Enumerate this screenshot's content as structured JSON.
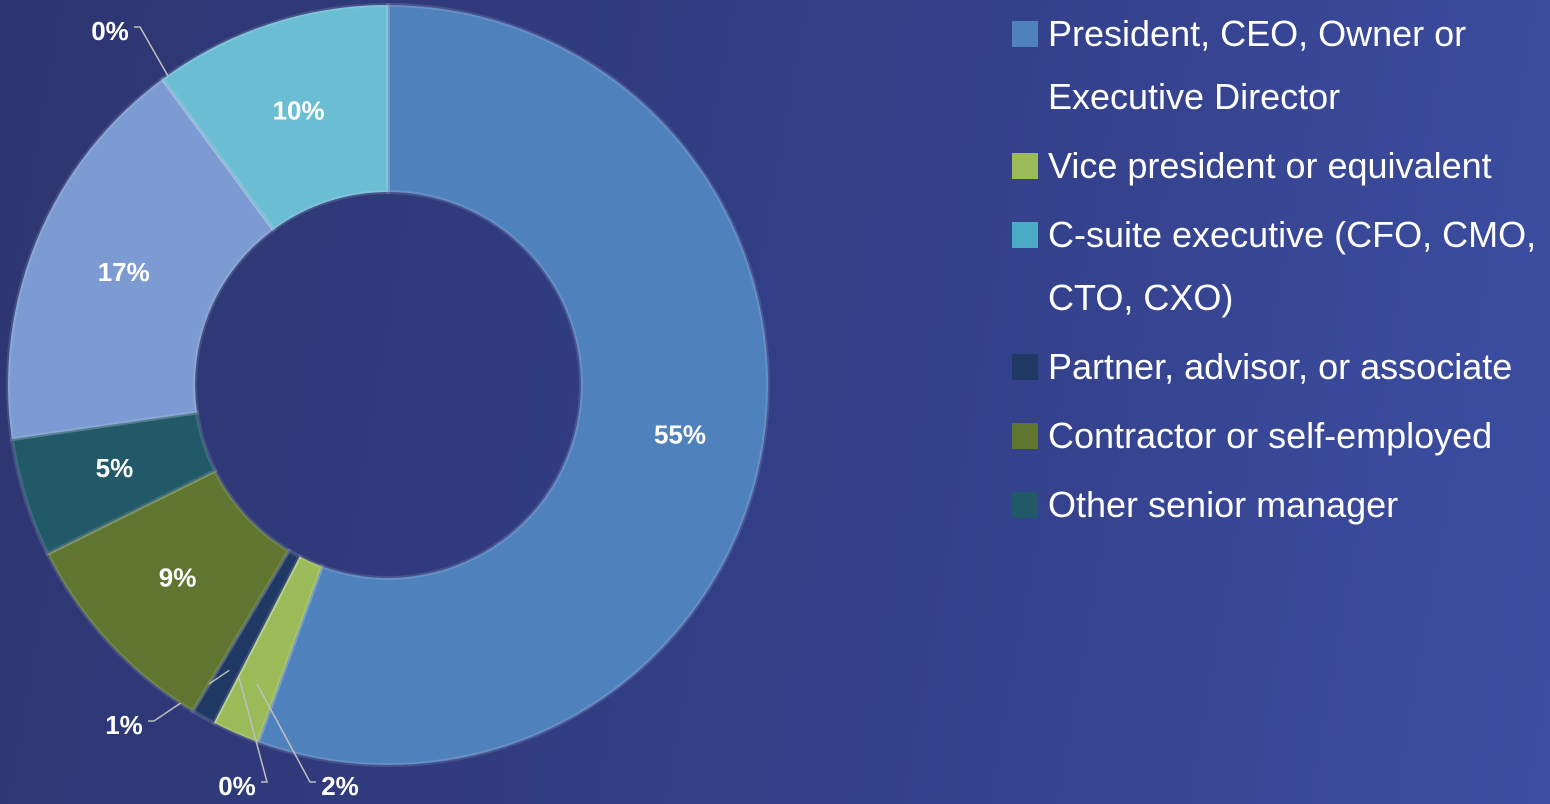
{
  "chart_data": {
    "type": "donut",
    "categories": [
      "President, CEO, Owner or Executive Director",
      "Vice president or equivalent",
      "C-suite executive (CFO, CMO, CTO, CXO)",
      "Partner, advisor, or associate",
      "Contractor or self-employed",
      "Other senior manager",
      null,
      null,
      null
    ],
    "values": [
      55,
      2,
      0,
      1,
      9,
      5,
      17,
      0,
      10
    ],
    "value_labels": [
      "55%",
      "2%",
      "0%",
      "1%",
      "9%",
      "5%",
      "17%",
      "0%",
      "10%"
    ],
    "colors": [
      "#4f81bd",
      "#9bbb59",
      "#4bacc6",
      "#1f3864",
      "#5f7530",
      "#215968",
      "#7b9bd2",
      "#3c7ea0",
      "#6bbdd3"
    ],
    "legend": true
  }
}
